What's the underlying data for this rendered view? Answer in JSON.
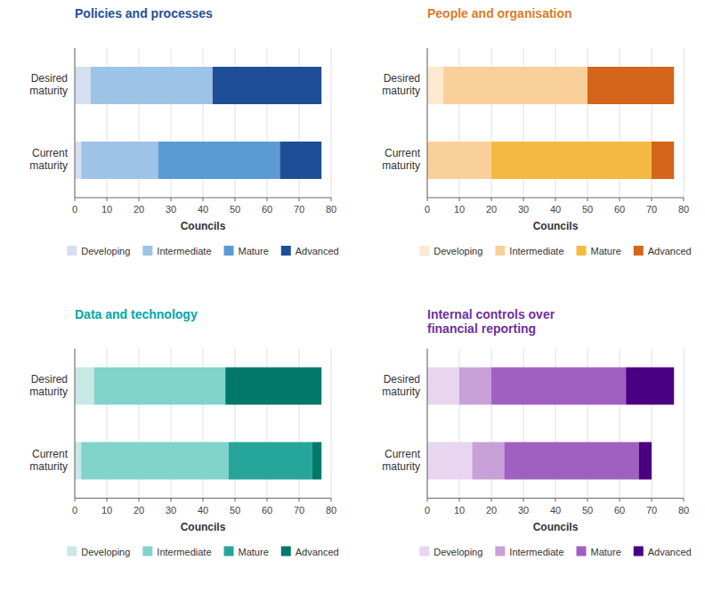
{
  "chart_data": [
    {
      "type": "bar",
      "orientation": "horizontal",
      "stacked": true,
      "grid": true,
      "legend": "bottom",
      "title": "Policies and processes",
      "color": "#1f4e99",
      "categories": [
        "Desired\nmaturity",
        "Current\nmaturity"
      ],
      "x_label": "Councils",
      "xlim": [
        0,
        80
      ],
      "xticks": [
        0,
        10,
        20,
        30,
        40,
        50,
        60,
        70,
        80
      ],
      "series": [
        {
          "name": "Developing",
          "color": "#d6dff0",
          "values": [
            5,
            2
          ]
        },
        {
          "name": "Intermediate",
          "color": "#9dc3e6",
          "values": [
            38,
            24
          ]
        },
        {
          "name": "Mature",
          "color": "#5b9bd5",
          "values": [
            0,
            38
          ]
        },
        {
          "name": "Advanced",
          "color": "#1f4e99",
          "values": [
            34,
            13
          ]
        }
      ]
    },
    {
      "type": "bar",
      "orientation": "horizontal",
      "stacked": true,
      "grid": true,
      "legend": "bottom",
      "title": "People and organisation",
      "color": "#e07b24",
      "categories": [
        "Desired\nmaturity",
        "Current\nmaturity"
      ],
      "x_label": "Councils",
      "xlim": [
        0,
        80
      ],
      "xticks": [
        0,
        10,
        20,
        30,
        40,
        50,
        60,
        70,
        80
      ],
      "series": [
        {
          "name": "Developing",
          "color": "#fde9d1",
          "values": [
            5,
            0
          ]
        },
        {
          "name": "Intermediate",
          "color": "#fad09a",
          "values": [
            45,
            20
          ]
        },
        {
          "name": "Mature",
          "color": "#f5b942",
          "values": [
            0,
            50
          ]
        },
        {
          "name": "Advanced",
          "color": "#d4651a",
          "values": [
            27,
            7
          ]
        }
      ]
    },
    {
      "type": "bar",
      "orientation": "horizontal",
      "stacked": true,
      "grid": true,
      "legend": "bottom",
      "title": "Data and technology",
      "color": "#00a8a8",
      "categories": [
        "Desired\nmaturity",
        "Current\nmaturity"
      ],
      "x_label": "Councils",
      "xlim": [
        0,
        80
      ],
      "xticks": [
        0,
        10,
        20,
        30,
        40,
        50,
        60,
        70,
        80
      ],
      "series": [
        {
          "name": "Developing",
          "color": "#c8e8e5",
          "values": [
            6,
            2
          ]
        },
        {
          "name": "Intermediate",
          "color": "#80d4cc",
          "values": [
            41,
            46
          ]
        },
        {
          "name": "Mature",
          "color": "#26a69a",
          "values": [
            0,
            26
          ]
        },
        {
          "name": "Advanced",
          "color": "#00796b",
          "values": [
            30,
            3
          ]
        }
      ]
    },
    {
      "type": "bar",
      "orientation": "horizontal",
      "stacked": true,
      "grid": true,
      "legend": "bottom",
      "title": "Internal controls over\nfinancial reporting",
      "color": "#7030a0",
      "categories": [
        "Desired\nmaturity",
        "Current\nmaturity"
      ],
      "x_label": "Councils",
      "xlim": [
        0,
        80
      ],
      "xticks": [
        0,
        10,
        20,
        30,
        40,
        50,
        60,
        70,
        80
      ],
      "series": [
        {
          "name": "Developing",
          "color": "#e8d5f0",
          "values": [
            10,
            14
          ]
        },
        {
          "name": "Intermediate",
          "color": "#c8a0d8",
          "values": [
            10,
            10
          ]
        },
        {
          "name": "Mature",
          "color": "#a060c0",
          "values": [
            42,
            42
          ]
        },
        {
          "name": "Advanced",
          "color": "#4a0080",
          "values": [
            15,
            4
          ]
        }
      ]
    }
  ]
}
